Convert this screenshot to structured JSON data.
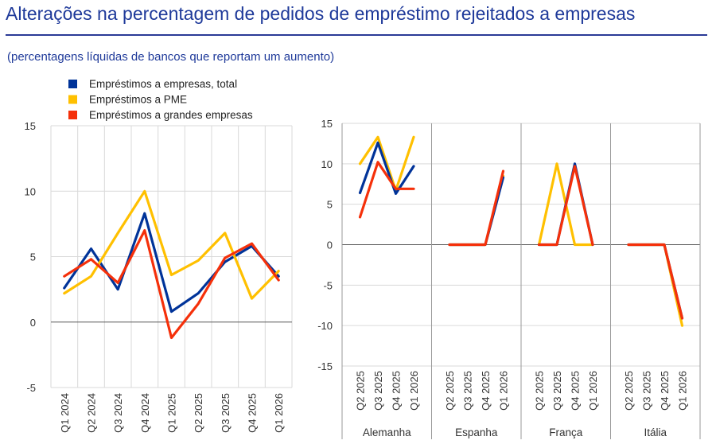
{
  "header": {
    "title": "Alterações na percentagem de pedidos de empréstimo rejeitados a empresas",
    "subtitle": "(percentagens líquidas de bancos que reportam um aumento)"
  },
  "legend": [
    {
      "label": "Empréstimos a empresas, total",
      "color": "#003399"
    },
    {
      "label": "Empréstimos a PME",
      "color": "#ffc000"
    },
    {
      "label": "Empréstimos a grandes empresas",
      "color": "#f5300a"
    }
  ],
  "chart_data": [
    {
      "type": "line",
      "categories": [
        "Q1 2024",
        "Q2 2024",
        "Q3 2024",
        "Q4 2024",
        "Q1 2025",
        "Q2 2025",
        "Q3 2025",
        "Q4 2025",
        "Q1 2026"
      ],
      "ylim": [
        -5,
        15
      ],
      "yticks": [
        "15",
        "10",
        "5",
        "0",
        "-5"
      ],
      "series": [
        {
          "name": "Empréstimos a empresas, total",
          "color": "#003399",
          "values": [
            2.6,
            5.6,
            2.5,
            8.3,
            0.8,
            2.2,
            4.6,
            5.8,
            3.5
          ]
        },
        {
          "name": "Empréstimos a PME",
          "color": "#ffc000",
          "values": [
            2.2,
            3.5,
            6.8,
            10.0,
            3.6,
            4.7,
            6.8,
            1.8,
            3.9
          ]
        },
        {
          "name": "Empréstimos a grandes empresas",
          "color": "#f5300a",
          "values": [
            3.5,
            4.8,
            3.0,
            7.0,
            -1.2,
            1.4,
            4.9,
            6.0,
            3.2
          ]
        }
      ]
    },
    {
      "type": "line",
      "groups": [
        {
          "name": "Alemanha",
          "categories": [
            "Q2 2025",
            "Q3 2025",
            "Q4 2025",
            "Q1 2026"
          ],
          "series": [
            {
              "name": "Empréstimos a empresas, total",
              "values": [
                6.4,
                12.6,
                6.3,
                9.7
              ]
            },
            {
              "name": "Empréstimos a PME",
              "values": [
                10.0,
                13.3,
                6.7,
                13.3
              ]
            },
            {
              "name": "Empréstimos a grandes empresas",
              "values": [
                3.4,
                10.2,
                6.9,
                6.9
              ]
            }
          ]
        },
        {
          "name": "Espanha",
          "categories": [
            "Q2 2025",
            "Q3 2025",
            "Q4 2025",
            "Q1 2026"
          ],
          "series": [
            {
              "name": "Empréstimos a empresas, total",
              "values": [
                0,
                0,
                0,
                8.3
              ]
            },
            {
              "name": "Empréstimos a PME",
              "values": [
                0,
                0,
                0,
                8.5
              ]
            },
            {
              "name": "Empréstimos a grandes empresas",
              "values": [
                0,
                0,
                0,
                9.1
              ]
            }
          ]
        },
        {
          "name": "França",
          "categories": [
            "Q2 2025",
            "Q3 2025",
            "Q4 2025",
            "Q1 2026"
          ],
          "series": [
            {
              "name": "Empréstimos a empresas, total",
              "values": [
                0,
                0,
                10.0,
                0
              ]
            },
            {
              "name": "Empréstimos a PME",
              "values": [
                0,
                10.0,
                0,
                0
              ]
            },
            {
              "name": "Empréstimos a grandes empresas",
              "values": [
                0,
                0,
                9.7,
                0
              ]
            }
          ]
        },
        {
          "name": "Itália",
          "categories": [
            "Q2 2025",
            "Q3 2025",
            "Q4 2025",
            "Q1 2026"
          ],
          "series": [
            {
              "name": "Empréstimos a empresas, total",
              "values": [
                0,
                0,
                0,
                -9.1
              ]
            },
            {
              "name": "Empréstimos a PME",
              "values": [
                0,
                0,
                0,
                -10.0
              ]
            },
            {
              "name": "Empréstimos a grandes empresas",
              "values": [
                0,
                0,
                0,
                -9.1
              ]
            }
          ]
        }
      ],
      "ylim": [
        -15,
        15
      ],
      "yticks": [
        "15",
        "10",
        "5",
        "0",
        "-5",
        "-10",
        "-15"
      ]
    }
  ]
}
